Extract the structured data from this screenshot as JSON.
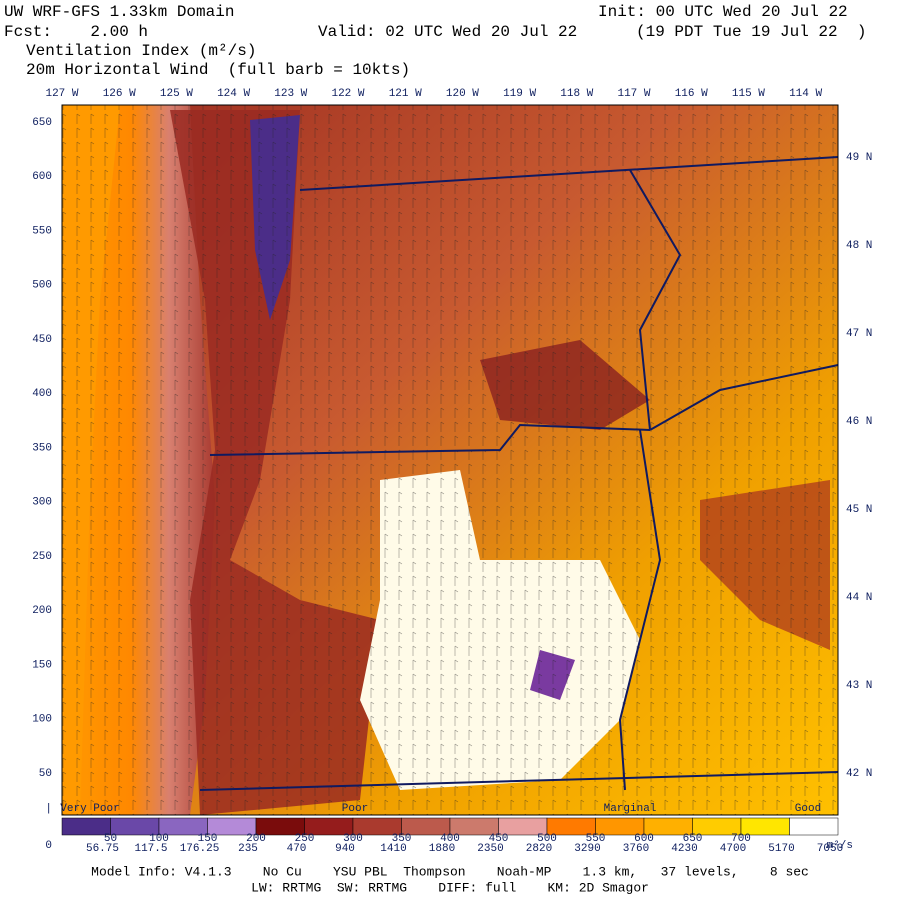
{
  "header": {
    "title": "UW WRF-GFS 1.33km Domain",
    "init": "Init: 00 UTC Wed 20 Jul 22",
    "fcst": "Fcst:    2.00 h",
    "valid": "Valid: 02 UTC Wed 20 Jul 22",
    "local": "(19 PDT Tue 19 Jul 22  )",
    "field": "Ventilation Index (m²/s)",
    "wind": "20m Horizontal Wind  (full barb = 10kts)"
  },
  "longitudes": [
    "127 W",
    "126 W",
    "125 W",
    "124 W",
    "123 W",
    "122 W",
    "121 W",
    "120 W",
    "119 W",
    "118 W",
    "117 W",
    "116 W",
    "115 W",
    "114 W"
  ],
  "latitudes": [
    "49 N",
    "48 N",
    "47 N",
    "46 N",
    "45 N",
    "44 N",
    "43 N",
    "42 N"
  ],
  "grid_labels": [
    "650",
    "600",
    "550",
    "500",
    "450",
    "400",
    "350",
    "300",
    "250",
    "200",
    "150",
    "100",
    "50",
    "|",
    "0"
  ],
  "colorbar": {
    "categories": [
      "Very Poor",
      "Poor",
      "Marginal",
      "Good"
    ],
    "colors": [
      "#4b2d88",
      "#6a48a8",
      "#8a66c0",
      "#b48ad8",
      "#7a0c0c",
      "#951c1c",
      "#aa3a2e",
      "#bc5a4c",
      "#cc7a6c",
      "#e8a0a0",
      "#ff7a00",
      "#ff9600",
      "#ffb000",
      "#ffcc00",
      "#ffe600",
      "#ffffff"
    ],
    "upper_labels": [
      "50",
      "100",
      "150",
      "200",
      "250",
      "300",
      "350",
      "400",
      "450",
      "500",
      "550",
      "600",
      "650",
      "700"
    ],
    "lower_labels": [
      "56.75",
      "117.5",
      "176.25",
      "235",
      "470",
      "940",
      "1410",
      "1880",
      "2350",
      "2820",
      "3290",
      "3760",
      "4230",
      "4700",
      "5170",
      "7050"
    ],
    "units": "m²/s"
  },
  "footer": {
    "line1": "Model Info: V4.1.3    No Cu    YSU PBL  Thompson    Noah-MP    1.3 km,   37 levels,    8 sec",
    "line2": "LW: RRTMG  SW: RRTMG    DIFF: full    KM: 2D Smagor"
  }
}
